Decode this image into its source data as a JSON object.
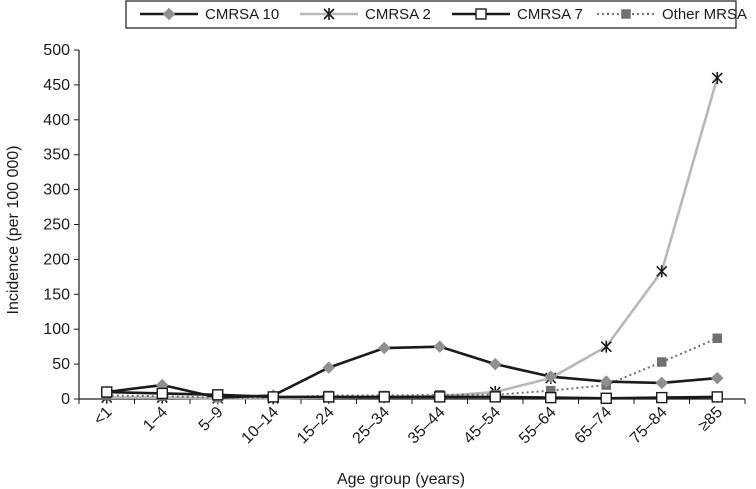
{
  "chart_data": {
    "type": "line",
    "title": "",
    "xlabel": "Age group (years)",
    "ylabel": "Incidence (per 100 000)",
    "ylim": [
      0,
      500
    ],
    "yticks": [
      "0",
      "50",
      "100",
      "150",
      "200",
      "250",
      "300",
      "350",
      "400",
      "450",
      "500"
    ],
    "categories": [
      "<1",
      "1–4",
      "5–9",
      "10–14",
      "15–24",
      "25–34",
      "35–44",
      "45–54",
      "55–64",
      "65–74",
      "75–84",
      "≥85"
    ],
    "grid": false,
    "legend_position": "top",
    "series": [
      {
        "name": "CMRSA 10",
        "color": "#1a1a1a",
        "marker_color": "#909090",
        "marker": "diamond",
        "line_style": "solid",
        "values": [
          10,
          20,
          2,
          5,
          45,
          73,
          75,
          50,
          32,
          25,
          23,
          30
        ]
      },
      {
        "name": "CMRSA 2",
        "color": "#b8b8b8",
        "marker_color": "#1a1a1a",
        "marker": "asterisk",
        "line_style": "solid",
        "values": [
          2,
          2,
          1,
          1,
          2,
          3,
          4,
          10,
          30,
          75,
          183,
          460
        ]
      },
      {
        "name": "CMRSA 7",
        "color": "#1a1a1a",
        "marker_color": "#ffffff",
        "marker": "square-open",
        "line_style": "solid",
        "values": [
          10,
          8,
          6,
          3,
          3,
          3,
          3,
          3,
          2,
          1,
          2,
          3
        ]
      },
      {
        "name": "Other MRSA",
        "color": "#707070",
        "marker_color": "#707070",
        "marker": "square",
        "line_style": "dotted",
        "values": [
          5,
          4,
          2,
          2,
          5,
          5,
          6,
          6,
          12,
          20,
          53,
          87
        ]
      }
    ]
  }
}
